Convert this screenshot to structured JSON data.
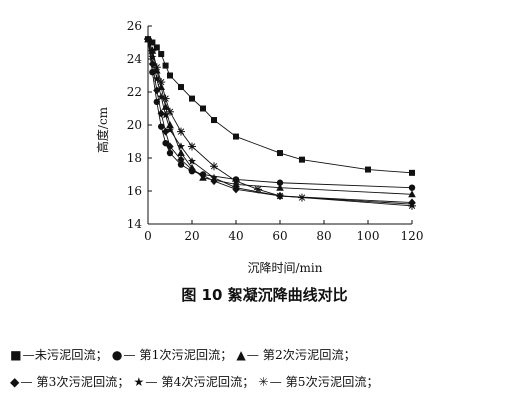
{
  "chart_data": {
    "type": "line",
    "title": "",
    "xlabel": "沉降时间/min",
    "ylabel": "高度/cm",
    "xlim": [
      0,
      120
    ],
    "ylim": [
      14,
      26
    ],
    "xticks": [
      "0",
      "20",
      "40",
      "60",
      "80",
      "100",
      "120"
    ],
    "yticks": [
      "14",
      "16",
      "18",
      "20",
      "22",
      "24",
      "26"
    ],
    "grid": false,
    "legend_position": "bottom",
    "series": [
      {
        "name": "未污泥回流",
        "marker": "square",
        "color": "#111111",
        "x": [
          0,
          2,
          4,
          6,
          8,
          10,
          15,
          20,
          25,
          30,
          40,
          60,
          70,
          100,
          120
        ],
        "y": [
          25.2,
          25.0,
          24.7,
          24.3,
          23.6,
          23.0,
          22.3,
          21.6,
          21.0,
          20.3,
          19.3,
          18.3,
          17.9,
          17.3,
          17.1
        ]
      },
      {
        "name": "第1次污泥回流",
        "marker": "circle",
        "color": "#111111",
        "x": [
          0,
          2,
          4,
          6,
          8,
          10,
          15,
          20,
          25,
          40,
          60,
          120
        ],
        "y": [
          25.2,
          23.2,
          21.4,
          19.9,
          18.9,
          18.3,
          17.6,
          17.2,
          17.0,
          16.7,
          16.5,
          16.2
        ]
      },
      {
        "name": "第2次污泥回流",
        "marker": "triangle",
        "color": "#111111",
        "x": [
          0,
          2,
          4,
          6,
          8,
          10,
          15,
          20,
          25,
          40,
          60,
          120
        ],
        "y": [
          25.2,
          24.5,
          23.3,
          22.3,
          21.1,
          20.0,
          18.3,
          17.4,
          16.8,
          16.4,
          16.2,
          15.8
        ]
      },
      {
        "name": "第3次污泥回流",
        "marker": "diamond",
        "color": "#111111",
        "x": [
          0,
          2,
          4,
          6,
          8,
          10,
          15,
          20,
          30,
          40,
          60,
          120
        ],
        "y": [
          25.2,
          23.7,
          22.1,
          20.7,
          19.6,
          18.7,
          17.9,
          17.3,
          16.6,
          16.1,
          15.7,
          15.3
        ]
      },
      {
        "name": "第4次污泥回流",
        "marker": "star",
        "color": "#111111",
        "x": [
          0,
          2,
          4,
          6,
          8,
          10,
          15,
          20,
          30,
          40,
          60,
          120
        ],
        "y": [
          25.2,
          24.1,
          22.8,
          21.7,
          20.6,
          19.7,
          18.7,
          17.8,
          16.8,
          16.2,
          15.7,
          15.2
        ]
      },
      {
        "name": "第5次污泥回流",
        "marker": "asterisk",
        "color": "#111111",
        "x": [
          0,
          2,
          4,
          6,
          8,
          10,
          15,
          20,
          30,
          40,
          50,
          60,
          70,
          120
        ],
        "y": [
          25.2,
          24.5,
          23.5,
          22.6,
          21.6,
          20.8,
          19.6,
          18.7,
          17.5,
          16.6,
          16.1,
          15.7,
          15.6,
          15.1
        ]
      }
    ]
  },
  "figure_caption": "图 10   絮凝沉降曲线对比",
  "legend_rows": [
    [
      {
        "symbol": "■",
        "text": "—未污泥回流；"
      },
      {
        "symbol": "●",
        "text": "— 第1次污泥回流；"
      },
      {
        "symbol": "▲",
        "text": "— 第2次污泥回流；"
      }
    ],
    [
      {
        "symbol": "◆",
        "text": "— 第3次污泥回流；"
      },
      {
        "symbol": "★",
        "text": "— 第4次污泥回流；"
      },
      {
        "symbol": "✳",
        "text": "— 第5次污泥回流；"
      }
    ]
  ]
}
